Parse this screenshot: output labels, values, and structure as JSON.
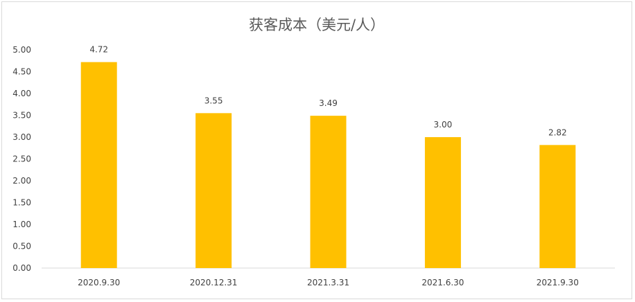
{
  "chart_data": {
    "type": "bar",
    "title": "获客成本（美元/人）",
    "xlabel": "",
    "ylabel": "",
    "categories": [
      "2020.9.30",
      "2020.12.31",
      "2021.3.31",
      "2021.6.30",
      "2021.9.30"
    ],
    "values": [
      4.72,
      3.55,
      3.49,
      3.0,
      2.82
    ],
    "data_labels": [
      "4.72",
      "3.55",
      "3.49",
      "3.00",
      "2.82"
    ],
    "ylim": [
      0,
      5
    ],
    "yticks": [
      "0.00",
      "0.50",
      "1.00",
      "1.50",
      "2.00",
      "2.50",
      "3.00",
      "3.50",
      "4.00",
      "4.50",
      "5.00"
    ],
    "grid": false,
    "legend": "none",
    "bar_color": "#FFC000",
    "axis_color": "#D9D9D9",
    "text_color": "#404040"
  }
}
